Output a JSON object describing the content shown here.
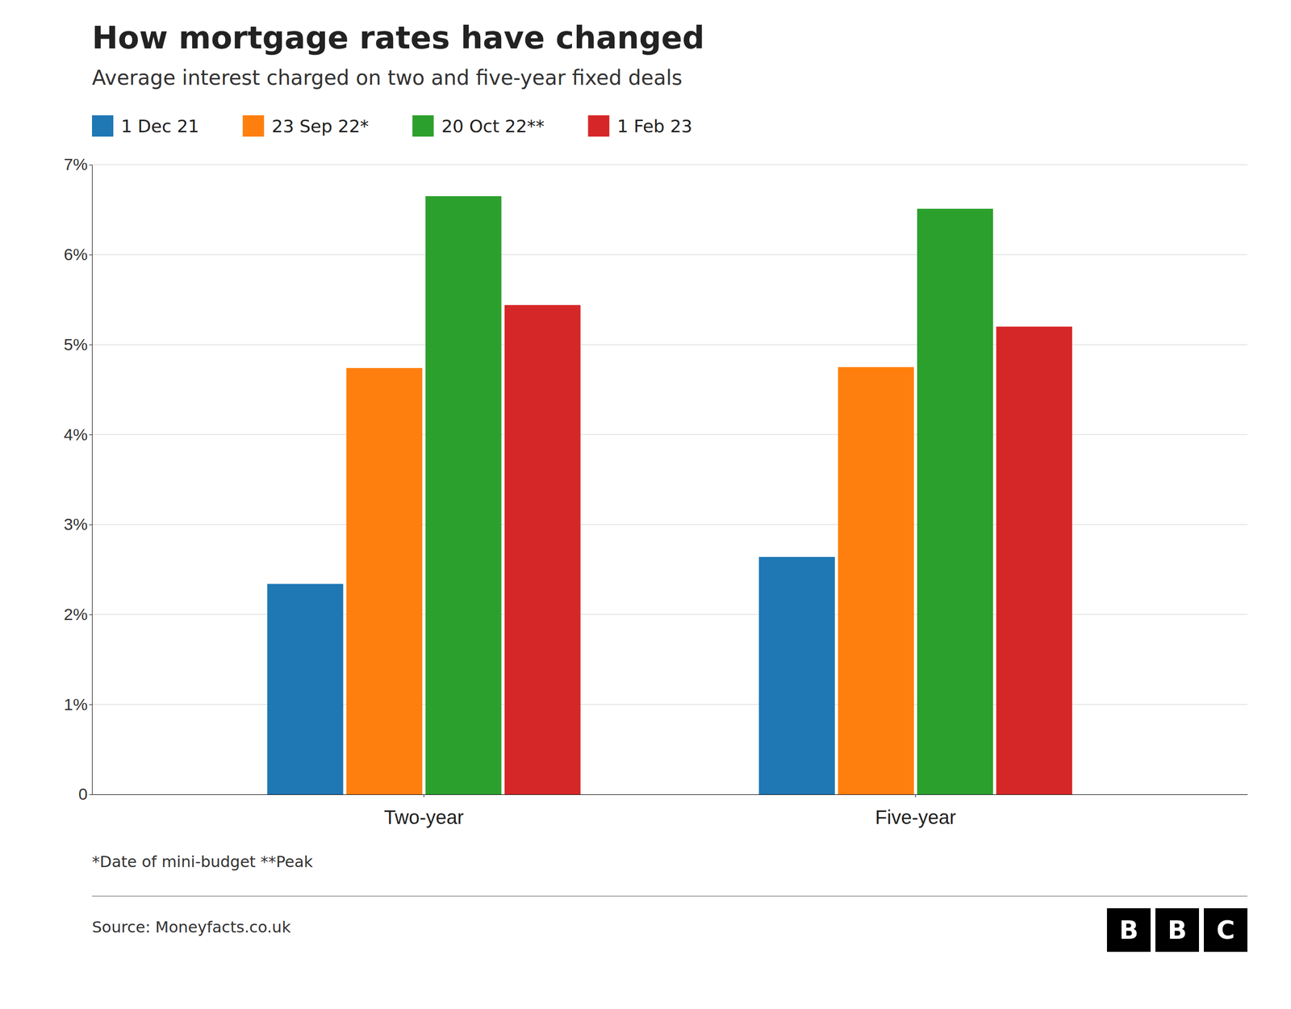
{
  "chart_data": {
    "type": "bar",
    "title": "How mortgage rates have changed",
    "subtitle": "Average interest charged on two and five-year fixed deals",
    "footnote": "*Date of mini-budget **Peak",
    "source": "Source: Moneyfacts.co.uk",
    "logo": [
      "B",
      "B",
      "C"
    ],
    "categories": [
      "Two-year",
      "Five-year"
    ],
    "series": [
      {
        "name": "1 Dec 21",
        "values": [
          2.34,
          2.64
        ]
      },
      {
        "name": "23 Sep 22*",
        "values": [
          4.74,
          4.75
        ]
      },
      {
        "name": "20 Oct 22**",
        "values": [
          6.65,
          6.51
        ]
      },
      {
        "name": "1 Feb 23",
        "values": [
          5.44,
          5.2
        ]
      }
    ],
    "ylim": [
      0,
      7
    ],
    "yticks": [
      0,
      {
        "value": 1,
        "label": "1%"
      },
      {
        "value": 2,
        "label": "2%"
      },
      {
        "value": 3,
        "label": "3%"
      },
      {
        "value": 4,
        "label": "4%"
      },
      {
        "value": 5,
        "label": "5%"
      },
      {
        "value": 6,
        "label": "6%"
      },
      {
        "value": 7,
        "label": "7%"
      }
    ],
    "grid": true,
    "legend": "top"
  }
}
